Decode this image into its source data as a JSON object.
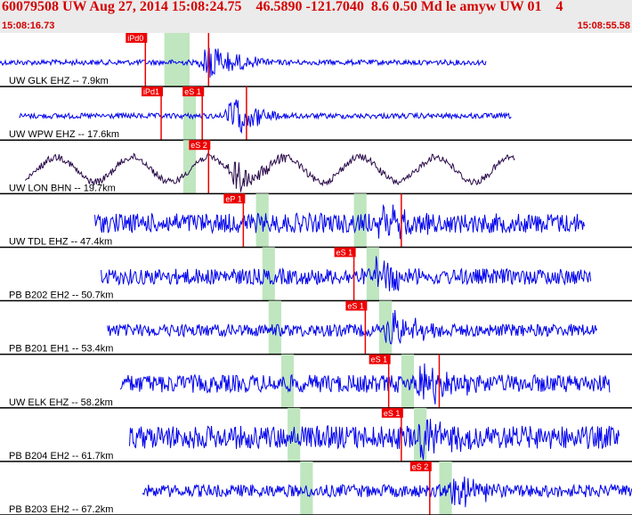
{
  "header": {
    "title": "60079508 UW Aug 27, 2014 15:08:24.75    46.5890 -121.7040  8.6 0.50 Md le amyw UW 01    4",
    "start_time": "15:08:16.73",
    "end_time": "15:08:55.58"
  },
  "colors": {
    "header_bg": "#ebebeb",
    "header_text": "#d40000",
    "trace_blue": "#0000ee",
    "trace_dark": "#2a0a4a",
    "green_band": "#bfe6bf",
    "pick_red": "#ee0000"
  },
  "traces": [
    {
      "label": "UW GLK EHZ -- 7.9km",
      "style": "blue",
      "start": 0.0,
      "end": 0.77,
      "amp": 3,
      "event": 0.33,
      "burst_amp": 26,
      "green": [
        0.26,
        0.3
      ],
      "picks": [
        {
          "text": "iPd0",
          "pos": 0.23,
          "flag": true
        },
        {
          "text": "",
          "pos": 0.33,
          "flag": true
        }
      ]
    },
    {
      "label": "UW WPW EHZ -- 17.6km",
      "style": "blue",
      "start": 0.03,
      "end": 0.81,
      "amp": 3,
      "event": 0.37,
      "burst_amp": 24,
      "green": [
        0.29,
        0.31
      ],
      "picks": [
        {
          "text": "iPd1",
          "pos": 0.255,
          "flag": true
        },
        {
          "text": "eS 1",
          "pos": 0.32,
          "flag": true
        },
        {
          "text": "",
          "pos": 0.39,
          "flag": false
        }
      ]
    },
    {
      "label": "UW LON BHN -- 19.7km",
      "style": "dark",
      "start": 0.04,
      "end": 0.815,
      "amp": 4,
      "event": 0.37,
      "burst_amp": 20,
      "green": [
        0.29,
        0.31
      ],
      "sine_amp": 14,
      "sine_period": 0.12,
      "picks": [
        {
          "text": "eS 2",
          "pos": 0.33,
          "flag": true
        }
      ]
    },
    {
      "label": "UW TDL EHZ -- 47.4km",
      "style": "blue",
      "start": 0.15,
      "end": 0.925,
      "amp": 11,
      "event": 0.6,
      "burst_amp": 20,
      "green": [
        0.405,
        0.425,
        0.56,
        0.58
      ],
      "picks": [
        {
          "text": "eP 1",
          "pos": 0.385,
          "flag": true
        },
        {
          "text": "",
          "pos": 0.635,
          "flag": false
        }
      ]
    },
    {
      "label": "PB B202 EH2 -- 50.7km",
      "style": "blue",
      "start": 0.16,
      "end": 0.935,
      "amp": 9,
      "event": 0.6,
      "burst_amp": 24,
      "green": [
        0.415,
        0.435,
        0.58,
        0.6
      ],
      "picks": [
        {
          "text": "eS 1",
          "pos": 0.56,
          "flag": true
        }
      ]
    },
    {
      "label": "PB B201 EH1 -- 53.4km",
      "style": "blue",
      "start": 0.17,
      "end": 0.945,
      "amp": 7,
      "event": 0.62,
      "burst_amp": 22,
      "green": [
        0.425,
        0.445,
        0.6,
        0.62
      ],
      "picks": [
        {
          "text": "eS 1",
          "pos": 0.578,
          "flag": true
        }
      ]
    },
    {
      "label": "UW ELK EHZ -- 58.2km",
      "style": "blue",
      "start": 0.19,
      "end": 0.965,
      "amp": 10,
      "event": 0.67,
      "burst_amp": 24,
      "green": [
        0.445,
        0.465,
        0.635,
        0.655
      ],
      "picks": [
        {
          "text": "eS 1",
          "pos": 0.615,
          "flag": true
        },
        {
          "text": "",
          "pos": 0.695,
          "flag": false
        }
      ]
    },
    {
      "label": "PB B204 EH2 -- 61.7km",
      "style": "blue",
      "start": 0.205,
      "end": 0.98,
      "amp": 13,
      "event": 0.67,
      "burst_amp": 22,
      "green": [
        0.455,
        0.475,
        0.655,
        0.675
      ],
      "picks": [
        {
          "text": "eS 1",
          "pos": 0.635,
          "flag": true
        }
      ]
    },
    {
      "label": "PB B203 EH2 -- 67.2km",
      "style": "blue",
      "start": 0.225,
      "end": 1.0,
      "amp": 7,
      "event": 0.72,
      "burst_amp": 20,
      "green": [
        0.475,
        0.495,
        0.695,
        0.715
      ],
      "picks": [
        {
          "text": "eS 2",
          "pos": 0.68,
          "flag": true
        }
      ]
    }
  ]
}
